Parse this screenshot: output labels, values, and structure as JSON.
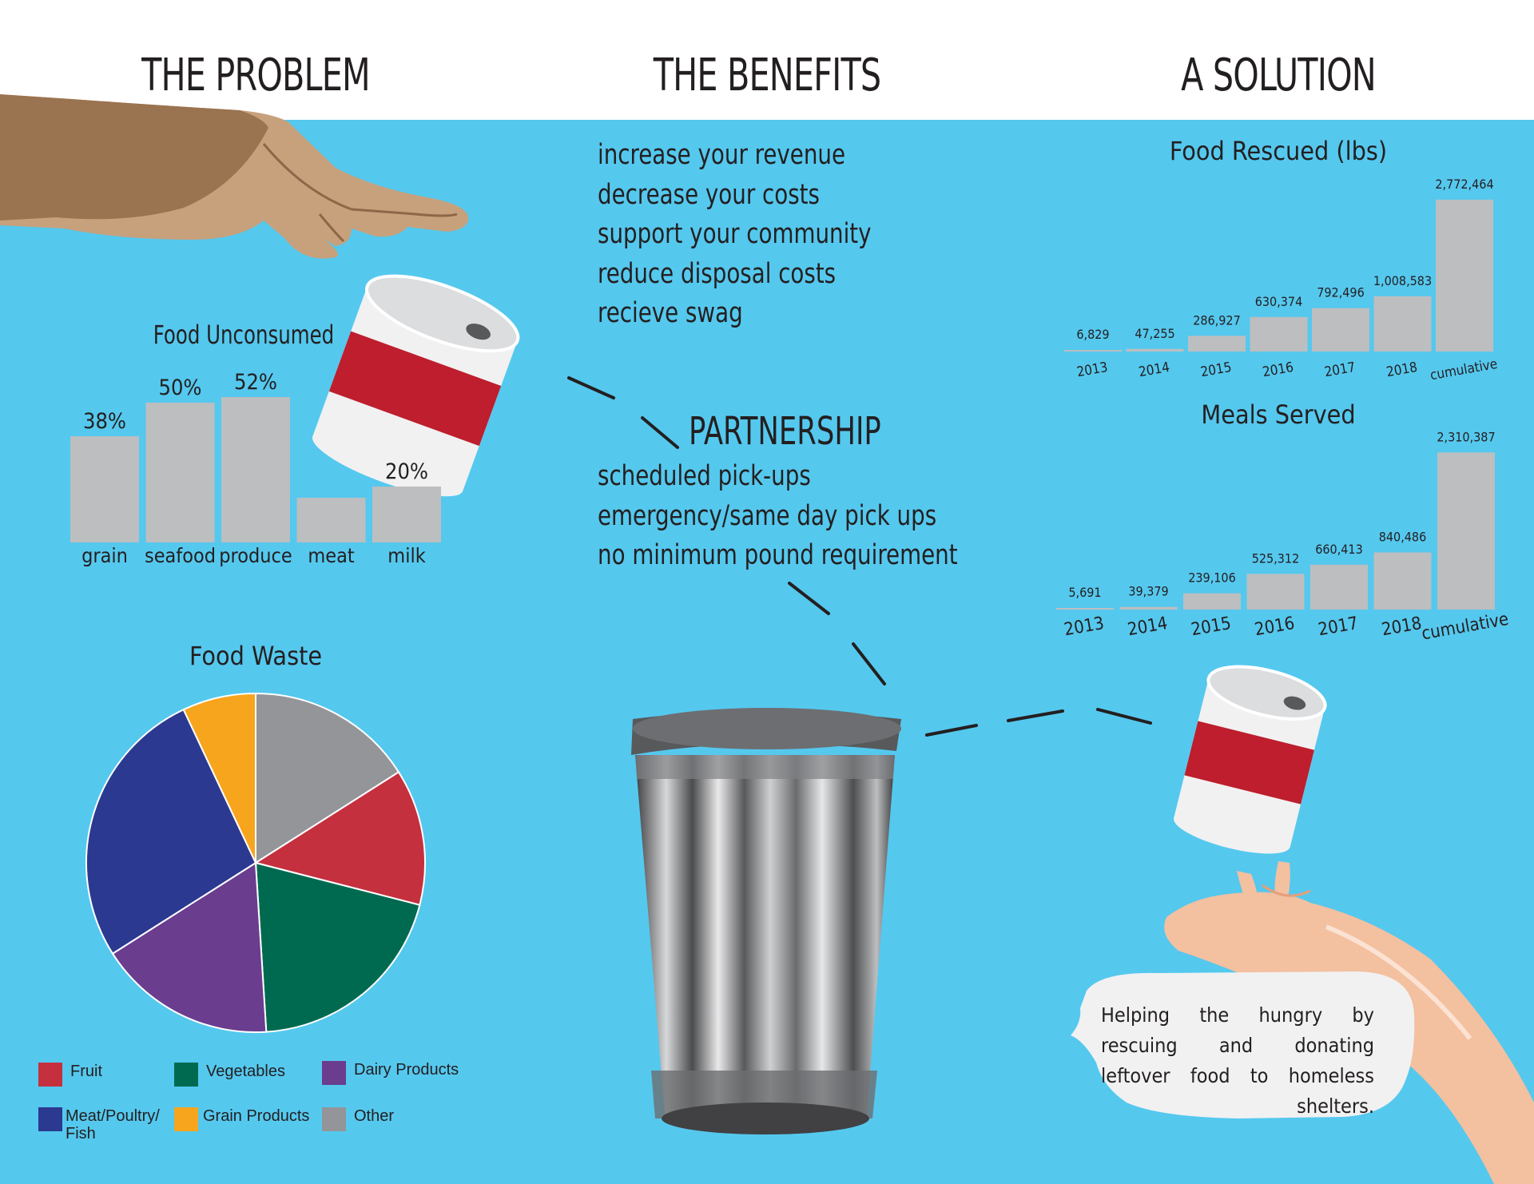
{
  "headers": {
    "problem": "THE PROBLEM",
    "benefits": "THE BENEFITS",
    "solution": "A SOLUTION"
  },
  "benefits": [
    "increase your revenue",
    "decrease your costs",
    "support your community",
    "reduce disposal costs",
    "recieve swag"
  ],
  "partnership": {
    "title": "PARTNERSHIP",
    "items": [
      "scheduled pick-ups",
      "emergency/same day pick ups",
      "no minimum pound requirement"
    ]
  },
  "speech_bubble": "Helping the hungry by rescuing and donating leftover food to homeless shelters.",
  "colors": {
    "background": "#55c8ee",
    "bar": "#bcbec0",
    "text": "#231f20",
    "can_red": "#be1e2d",
    "can_white": "#f1f1f2"
  },
  "chart_data": [
    {
      "type": "bar",
      "title": "Food Unconsumed",
      "categories": [
        "grain",
        "seafood",
        "produce",
        "meat",
        "milk"
      ],
      "values": [
        38,
        50,
        52,
        16,
        20
      ],
      "value_labels": [
        "38%",
        "50%",
        "52%",
        "",
        "20%"
      ],
      "unit": "%",
      "ylim": [
        0,
        55
      ],
      "grid": false
    },
    {
      "type": "pie",
      "title": "Food Waste",
      "slices": [
        {
          "name": "Other",
          "value": 16,
          "color": "#939598"
        },
        {
          "name": "Fruit",
          "value": 13,
          "color": "#c5303e"
        },
        {
          "name": "Vegetables",
          "value": 20,
          "color": "#006a50"
        },
        {
          "name": "Dairy Products",
          "value": 17,
          "color": "#6a3d8f"
        },
        {
          "name": "Meat/Poultry/ Fish",
          "value": 27,
          "color": "#2b3990"
        },
        {
          "name": "Grain Products",
          "value": 7,
          "color": "#f7a51c"
        }
      ],
      "legend": [
        {
          "name": "Fruit",
          "color": "#c5303e"
        },
        {
          "name": "Vegetables",
          "color": "#006a50"
        },
        {
          "name": "Dairy Products",
          "color": "#6a3d8f"
        },
        {
          "name": "Meat/Poultry/ Fish",
          "color": "#2b3990"
        },
        {
          "name": "Grain Products",
          "color": "#f7a51c"
        },
        {
          "name": "Other",
          "color": "#939598"
        }
      ],
      "legend_position": "bottom"
    },
    {
      "type": "bar",
      "title": "Food Rescued (lbs)",
      "categories": [
        "2013",
        "2014",
        "2015",
        "2016",
        "2017",
        "2018",
        "cumulative"
      ],
      "values": [
        6829,
        47255,
        286927,
        630374,
        792496,
        1008583,
        2772464
      ],
      "value_labels": [
        "6,829",
        "47,255",
        "286,927",
        "630,374",
        "792,496",
        "1,008,583",
        "2,772,464"
      ],
      "ylim": [
        0,
        2800000
      ],
      "grid": false
    },
    {
      "type": "bar",
      "title": "Meals Served",
      "categories": [
        "2013",
        "2014",
        "2015",
        "2016",
        "2017",
        "2018",
        "cumulative"
      ],
      "values": [
        5691,
        39379,
        239106,
        525312,
        660413,
        840486,
        2310387
      ],
      "value_labels": [
        "5,691",
        "39,379",
        "239,106",
        "525,312",
        "660,413",
        "840,486",
        "2,310,387"
      ],
      "ylim": [
        0,
        2350000
      ],
      "grid": false
    }
  ]
}
